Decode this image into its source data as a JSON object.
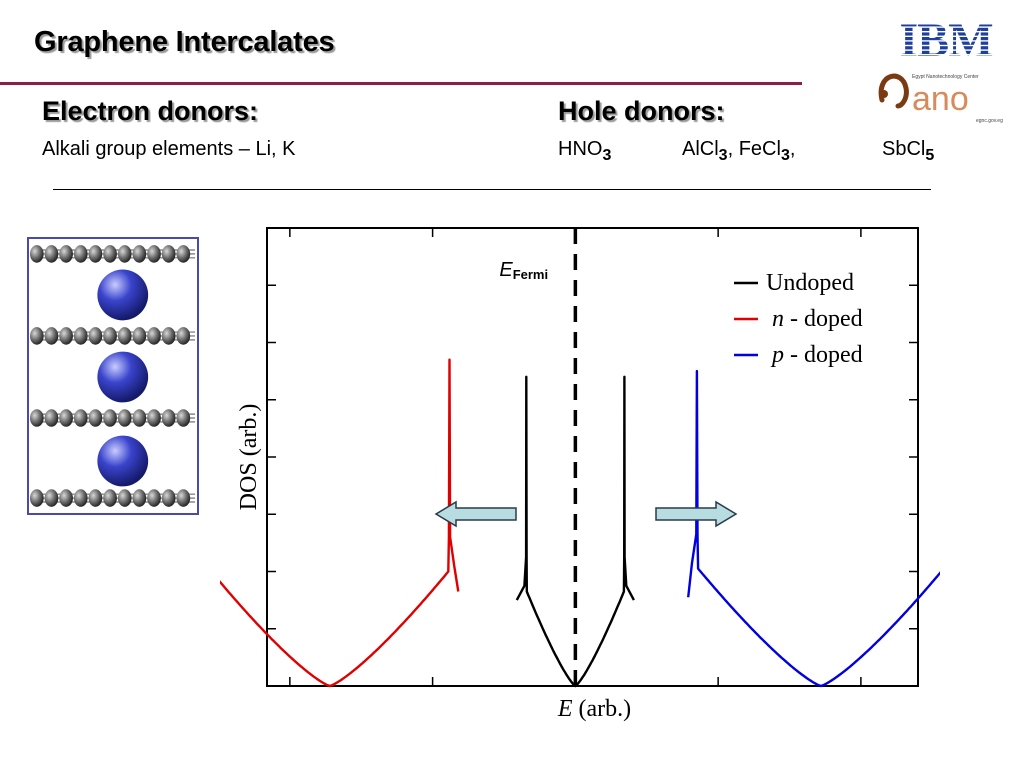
{
  "slide": {
    "title": "Graphene Intercalates"
  },
  "left_column": {
    "heading": "Electron donors:",
    "text": "Alkali group elements – Li, K"
  },
  "right_column": {
    "heading": "Hole donors:",
    "items": [
      {
        "base": "HNO",
        "sub": "3",
        "tail": ""
      },
      {
        "base": "AlCl",
        "sub": "3",
        "tail": ", "
      },
      {
        "base": "FeCl",
        "sub": "3",
        "tail": ","
      },
      {
        "base": "SbCl",
        "sub": "5",
        "tail": ""
      }
    ]
  },
  "logos": {
    "ibm": "IBM",
    "nano": "ano",
    "nano_tagline": "Egypt Nanotechnology Center",
    "nano_url": "egnc.gov.eg"
  },
  "chart_data": {
    "type": "line",
    "xlabel_italic": "E",
    "xlabel_rest": " (arb.)",
    "ylabel": "DOS (arb.)",
    "fermi_label_main": "E",
    "fermi_label_sub": "Fermi",
    "fermi_x": 0,
    "xlim": [
      -10.8,
      12
    ],
    "ylim": [
      0,
      8
    ],
    "grid": false,
    "legend_position": "top-right",
    "legend": [
      {
        "prefix": "",
        "italic": "",
        "rest": "Undoped",
        "color": "#000000"
      },
      {
        "prefix": "",
        "italic": "n",
        "rest": " - doped",
        "color": "#e00000"
      },
      {
        "prefix": "",
        "italic": "p",
        "rest": " - doped",
        "color": "#0000e0"
      }
    ],
    "series": [
      {
        "color": "#000000",
        "center": 0,
        "half_width": 1.7,
        "peak": 5.4,
        "shoulder": 1.65,
        "edge": 1.5
      },
      {
        "color": "#e00000",
        "center": -8.6,
        "half_width": 4.15,
        "peak": 5.7,
        "shoulder": 2.0,
        "edge": 1.65
      },
      {
        "color": "#0000e0",
        "center": 8.6,
        "half_width": 4.3,
        "peak": 5.5,
        "shoulder": 2.05,
        "edge": 1.55
      }
    ],
    "shift_arrows": [
      {
        "direction": "left",
        "color": "#b8dde0"
      },
      {
        "direction": "right",
        "color": "#b8dde0"
      }
    ]
  }
}
